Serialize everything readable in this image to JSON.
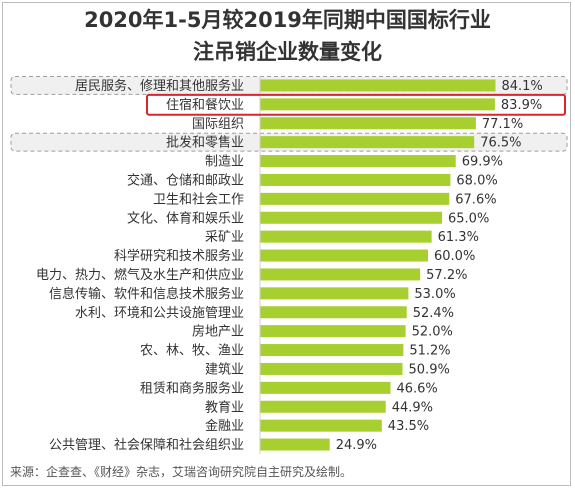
{
  "title_line1": "2020年1-5月较2019年同期中国国标行业",
  "title_line2": "注吊销企业数量变化",
  "source": "来源：企查查、《财经》杂志，艾瑞咨询研究院自主研究及绘制。",
  "colors": {
    "bar": "#a7cf30",
    "highlight_box": "#d9262e",
    "dashed_box": "#9e9e9e",
    "dashed_fill": "#f0f0f0",
    "text": "#333333"
  },
  "chart_data": {
    "type": "bar",
    "orientation": "horizontal",
    "categories": [
      "居民服务、修理和其他服务业",
      "住宿和餐饮业",
      "国际组织",
      "批发和零售业",
      "制造业",
      "交通、仓储和邮政业",
      "卫生和社会工作",
      "文化、体育和娱乐业",
      "采矿业",
      "科学研究和技术服务业",
      "电力、热力、燃气及水生产和供应业",
      "信息传输、软件和信息技术服务业",
      "水利、环境和公共设施管理业",
      "房地产业",
      "农、林、牧、渔业",
      "建筑业",
      "租赁和商务服务业",
      "教育业",
      "金融业",
      "公共管理、社会保障和社会组织业"
    ],
    "values": [
      84.1,
      83.9,
      77.1,
      76.5,
      69.9,
      68.0,
      67.6,
      65.0,
      61.3,
      60.0,
      57.2,
      53.0,
      52.4,
      52.0,
      51.2,
      50.9,
      46.6,
      44.9,
      43.5,
      24.9
    ],
    "value_labels": [
      "84.1%",
      "83.9%",
      "77.1%",
      "76.5%",
      "69.9%",
      "68.0%",
      "67.6%",
      "65.0%",
      "61.3%",
      "60.0%",
      "57.2%",
      "53.0%",
      "52.4%",
      "52.0%",
      "51.2%",
      "50.9%",
      "46.6%",
      "44.9%",
      "43.5%",
      "24.9%"
    ],
    "highlight_red": [
      1
    ],
    "highlight_dashed": [
      0,
      3
    ],
    "xlim": [
      0,
      100
    ],
    "title": "2020年1-5月较2019年同期中国国标行业注吊销企业数量变化"
  }
}
